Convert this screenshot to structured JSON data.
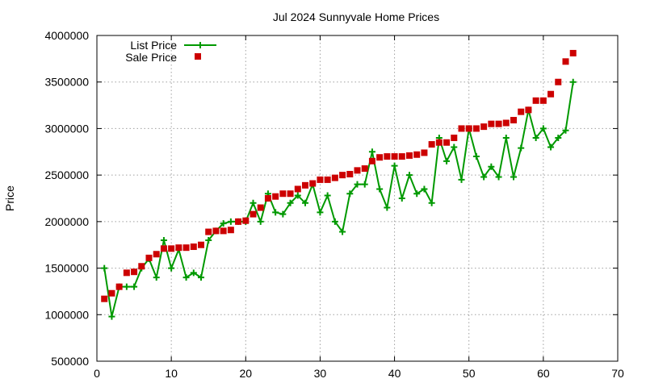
{
  "chart_data": {
    "type": "line",
    "title": "Jul 2024 Sunnyvale Home Prices",
    "xlabel": "",
    "ylabel": "Price",
    "xlim": [
      0,
      70
    ],
    "ylim": [
      500000,
      4000000
    ],
    "x_ticks": [
      0,
      10,
      20,
      30,
      40,
      50,
      60,
      70
    ],
    "y_ticks": [
      500000,
      1000000,
      1500000,
      2000000,
      2500000,
      3000000,
      3500000,
      4000000
    ],
    "grid": true,
    "legend_position": "top-left",
    "series": [
      {
        "name": "List Price",
        "style": "line-with-plus-markers",
        "color": "#009900",
        "x": [
          1,
          2,
          3,
          4,
          5,
          6,
          7,
          8,
          9,
          10,
          11,
          12,
          13,
          14,
          15,
          16,
          17,
          18,
          19,
          20,
          21,
          22,
          23,
          24,
          25,
          26,
          27,
          28,
          29,
          30,
          31,
          32,
          33,
          34,
          35,
          36,
          37,
          38,
          39,
          40,
          41,
          42,
          43,
          44,
          45,
          46,
          47,
          48,
          49,
          50,
          51,
          52,
          53,
          54,
          55,
          56,
          57,
          58,
          59,
          60,
          61,
          62,
          63,
          64
        ],
        "values": [
          1500000,
          980000,
          1300000,
          1300000,
          1300000,
          1500000,
          1600000,
          1400000,
          1800000,
          1500000,
          1700000,
          1400000,
          1450000,
          1400000,
          1800000,
          1900000,
          1980000,
          2000000,
          2000000,
          2000000,
          2200000,
          2000000,
          2300000,
          2100000,
          2080000,
          2200000,
          2280000,
          2200000,
          2400000,
          2100000,
          2280000,
          2000000,
          1890000,
          2300000,
          2400000,
          2400000,
          2750000,
          2350000,
          2150000,
          2600000,
          2250000,
          2500000,
          2300000,
          2350000,
          2200000,
          2900000,
          2650000,
          2800000,
          2450000,
          3000000,
          2700000,
          2480000,
          2590000,
          2480000,
          2900000,
          2480000,
          2790000,
          3200000,
          2900000,
          3000000,
          2800000,
          2900000,
          2980000,
          3500000
        ]
      },
      {
        "name": "Sale Price",
        "style": "square-markers",
        "color": "#cc0000",
        "x": [
          1,
          2,
          3,
          4,
          5,
          6,
          7,
          8,
          9,
          10,
          11,
          12,
          13,
          14,
          15,
          16,
          17,
          18,
          19,
          20,
          21,
          22,
          23,
          24,
          25,
          26,
          27,
          28,
          29,
          30,
          31,
          32,
          33,
          34,
          35,
          36,
          37,
          38,
          39,
          40,
          41,
          42,
          43,
          44,
          45,
          46,
          47,
          48,
          49,
          50,
          51,
          52,
          53,
          54,
          55,
          56,
          57,
          58,
          59,
          60,
          61,
          62,
          63,
          64
        ],
        "values": [
          1170000,
          1230000,
          1300000,
          1450000,
          1460000,
          1520000,
          1610000,
          1650000,
          1710000,
          1710000,
          1720000,
          1720000,
          1730000,
          1750000,
          1890000,
          1900000,
          1900000,
          1910000,
          2000000,
          2010000,
          2080000,
          2150000,
          2250000,
          2270000,
          2300000,
          2300000,
          2350000,
          2390000,
          2410000,
          2450000,
          2450000,
          2470000,
          2500000,
          2510000,
          2550000,
          2570000,
          2650000,
          2690000,
          2700000,
          2700000,
          2700000,
          2710000,
          2720000,
          2740000,
          2830000,
          2850000,
          2850000,
          2900000,
          3000000,
          3000000,
          3000000,
          3020000,
          3050000,
          3050000,
          3060000,
          3090000,
          3180000,
          3200000,
          3300000,
          3300000,
          3370000,
          3500000,
          3720000,
          3810000
        ]
      }
    ]
  }
}
